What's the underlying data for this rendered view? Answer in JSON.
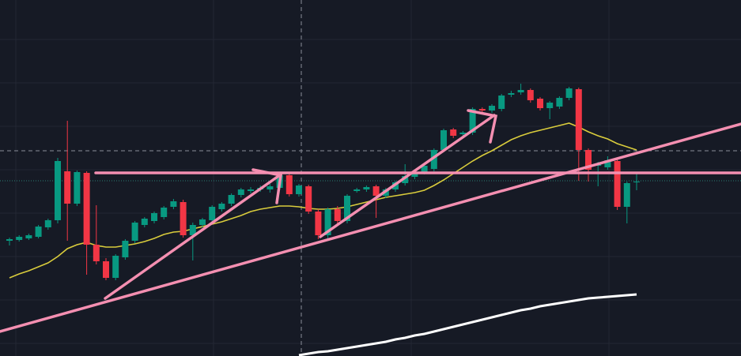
{
  "chart_data": {
    "type": "candlestick",
    "open": [
      146,
      147,
      149,
      151,
      163,
      172,
      234,
      193,
      232,
      141,
      120,
      99,
      125,
      146,
      166,
      171,
      176,
      189,
      195,
      153,
      166,
      172,
      186,
      193,
      204,
      209,
      211,
      211,
      213,
      229,
      205,
      215,
      183,
      153,
      186,
      171,
      209,
      211,
      215,
      203,
      211,
      219,
      227,
      233,
      237,
      261,
      287,
      281,
      283,
      313,
      311,
      313,
      331,
      334,
      337,
      326,
      314,
      316,
      327,
      338,
      261,
      241,
      239,
      247,
      189,
      220
    ],
    "close": [
      148,
      151,
      153,
      164,
      172,
      247,
      193,
      233,
      141,
      120,
      99,
      127,
      146,
      169,
      174,
      181,
      188,
      196,
      153,
      166,
      173,
      189,
      193,
      204,
      211,
      211,
      213,
      215,
      229,
      205,
      216,
      183,
      153,
      186,
      171,
      203,
      211,
      214,
      203,
      211,
      220,
      228,
      233,
      241,
      261,
      286,
      279,
      283,
      313,
      311,
      317,
      330,
      333,
      337,
      324,
      314,
      321,
      327,
      339,
      261,
      236,
      244,
      248,
      189,
      219,
      221
    ],
    "high": [
      150,
      153,
      155,
      166,
      174,
      251,
      298,
      235,
      234,
      191,
      124,
      129,
      148,
      171,
      176,
      183,
      190,
      199,
      198,
      169,
      175,
      191,
      195,
      206,
      213,
      214,
      216,
      218,
      231,
      232,
      218,
      217,
      186,
      188,
      190,
      205,
      213,
      216,
      217,
      213,
      222,
      243,
      236,
      243,
      263,
      288,
      289,
      285,
      315,
      315,
      319,
      332,
      336,
      345,
      339,
      328,
      323,
      329,
      341,
      340,
      263,
      246,
      253,
      249,
      221,
      232
    ],
    "low": [
      140,
      145,
      147,
      149,
      160,
      168,
      146,
      190,
      103,
      116,
      96,
      96,
      122,
      143,
      163,
      168,
      173,
      186,
      150,
      121,
      163,
      169,
      183,
      190,
      201,
      206,
      208,
      207,
      210,
      202,
      202,
      180,
      148,
      149,
      168,
      168,
      207,
      208,
      175,
      200,
      208,
      216,
      224,
      230,
      234,
      258,
      276,
      278,
      280,
      308,
      308,
      310,
      328,
      331,
      321,
      311,
      300,
      313,
      324,
      222,
      221,
      215,
      236,
      185,
      168,
      210
    ],
    "up_color": "#089981",
    "down_color": "#f23645",
    "ylim": [
      0,
      451
    ],
    "overlays": [
      {
        "color": "#d9cc3c",
        "values": [
          99,
          104,
          108,
          113,
          118,
          126,
          136,
          141,
          144,
          140,
          138,
          138,
          140,
          142,
          145,
          149,
          154,
          157,
          158,
          161,
          164,
          167,
          170,
          174,
          178,
          183,
          186,
          188,
          190,
          190,
          189,
          187,
          186,
          186,
          187,
          189,
          192,
          195,
          198,
          201,
          203,
          205,
          207,
          210,
          216,
          223,
          231,
          239,
          247,
          254,
          260,
          267,
          274,
          279,
          283,
          286,
          289,
          292,
          295,
          290,
          284,
          279,
          275,
          269,
          265,
          261
        ]
      },
      {
        "color": "#ffffff",
        "values": [
          null,
          null,
          null,
          null,
          null,
          null,
          null,
          null,
          null,
          null,
          null,
          null,
          null,
          null,
          null,
          null,
          null,
          null,
          null,
          null,
          null,
          null,
          null,
          null,
          null,
          null,
          null,
          null,
          null,
          null,
          1,
          3,
          5,
          6,
          8,
          10,
          12,
          14,
          16,
          18,
          21,
          23,
          26,
          28,
          31,
          34,
          37,
          40,
          43,
          46,
          49,
          52,
          55,
          58,
          60,
          63,
          65,
          67,
          69,
          71,
          73,
          74,
          75,
          76,
          77,
          78
        ]
      }
    ]
  }
}
